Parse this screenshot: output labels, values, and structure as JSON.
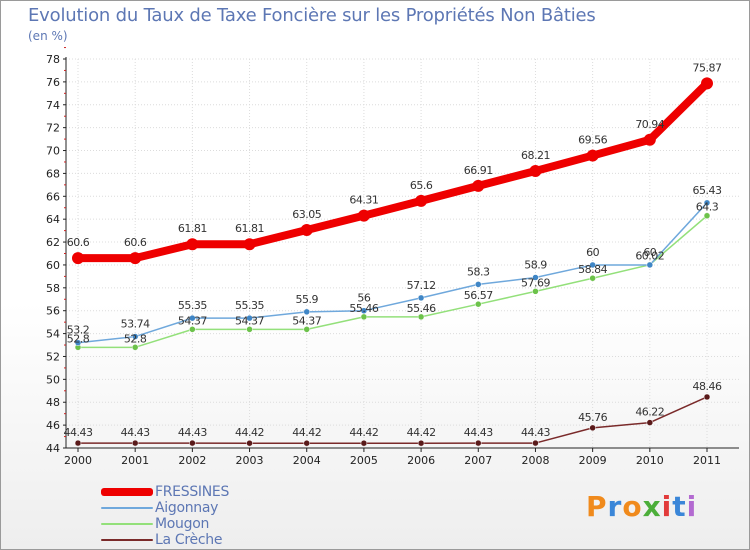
{
  "title": "Evolution du Taux de Taxe Foncière sur les Propriétés Non Bâties",
  "unit": "(en %)",
  "colors": {
    "FRESSINES": "#ee0000",
    "Aigonnay": "#6fa8dc",
    "Mougon": "#93e07a",
    "La Crèche": "#7a2a2a"
  },
  "chart_data": {
    "type": "line",
    "categories": [
      "2000",
      "2001",
      "2002",
      "2003",
      "2004",
      "2005",
      "2006",
      "2007",
      "2008",
      "2009",
      "2010",
      "2011"
    ],
    "ylim": [
      44,
      78
    ],
    "yticks": [
      44,
      46,
      48,
      50,
      52,
      54,
      56,
      58,
      60,
      62,
      64,
      66,
      68,
      70,
      72,
      74,
      76,
      78
    ],
    "series": [
      {
        "name": "FRESSINES",
        "values": [
          60.6,
          60.6,
          61.81,
          61.81,
          63.05,
          64.31,
          65.6,
          66.91,
          68.21,
          69.56,
          70.94,
          75.87
        ],
        "labels": [
          "60.6",
          "60.6",
          "61.81",
          "61.81",
          "63.05",
          "64.31",
          "65.6",
          "66.91",
          "68.21",
          "69.56",
          "70.94",
          "75.87"
        ]
      },
      {
        "name": "Aigonnay",
        "values": [
          53.2,
          53.74,
          55.35,
          55.35,
          55.9,
          56,
          57.12,
          58.3,
          58.9,
          60,
          60,
          65.43
        ],
        "labels": [
          "53.2",
          "53.74",
          "55.35",
          "55.35",
          "55.9",
          "56",
          "57.12",
          "58.3",
          "58.9",
          "60",
          "60",
          "65.43"
        ]
      },
      {
        "name": "Mougon",
        "values": [
          52.8,
          52.8,
          54.37,
          54.37,
          54.37,
          55.46,
          55.46,
          56.57,
          57.69,
          58.84,
          60.02,
          64.3
        ],
        "labels": [
          "52.8",
          "52.8",
          "54.37",
          "54.37",
          "54.37",
          "55.46",
          "55.46",
          "56.57",
          "57.69",
          "58.84",
          "60.02",
          "64.3"
        ]
      },
      {
        "name": "La Crèche",
        "values": [
          44.43,
          44.43,
          44.43,
          44.42,
          44.42,
          44.42,
          44.42,
          44.43,
          44.43,
          45.76,
          46.22,
          48.46
        ],
        "labels": [
          "44.43",
          "44.43",
          "44.43",
          "44.42",
          "44.42",
          "44.42",
          "44.42",
          "44.43",
          "44.43",
          "45.76",
          "46.22",
          "48.46"
        ]
      }
    ]
  },
  "legend": [
    "FRESSINES",
    "Aigonnay",
    "Mougon",
    "La Crèche"
  ],
  "logo": {
    "text": "Proxiti",
    "letters": [
      "P",
      "r",
      "o",
      "x",
      "i",
      "t",
      "i"
    ],
    "letter_colors": [
      "#f08a1c",
      "#3a86d8",
      "#f08a1c",
      "#4cae3a",
      "#e23b3b",
      "#3a86d8",
      "#b36ad1"
    ]
  }
}
